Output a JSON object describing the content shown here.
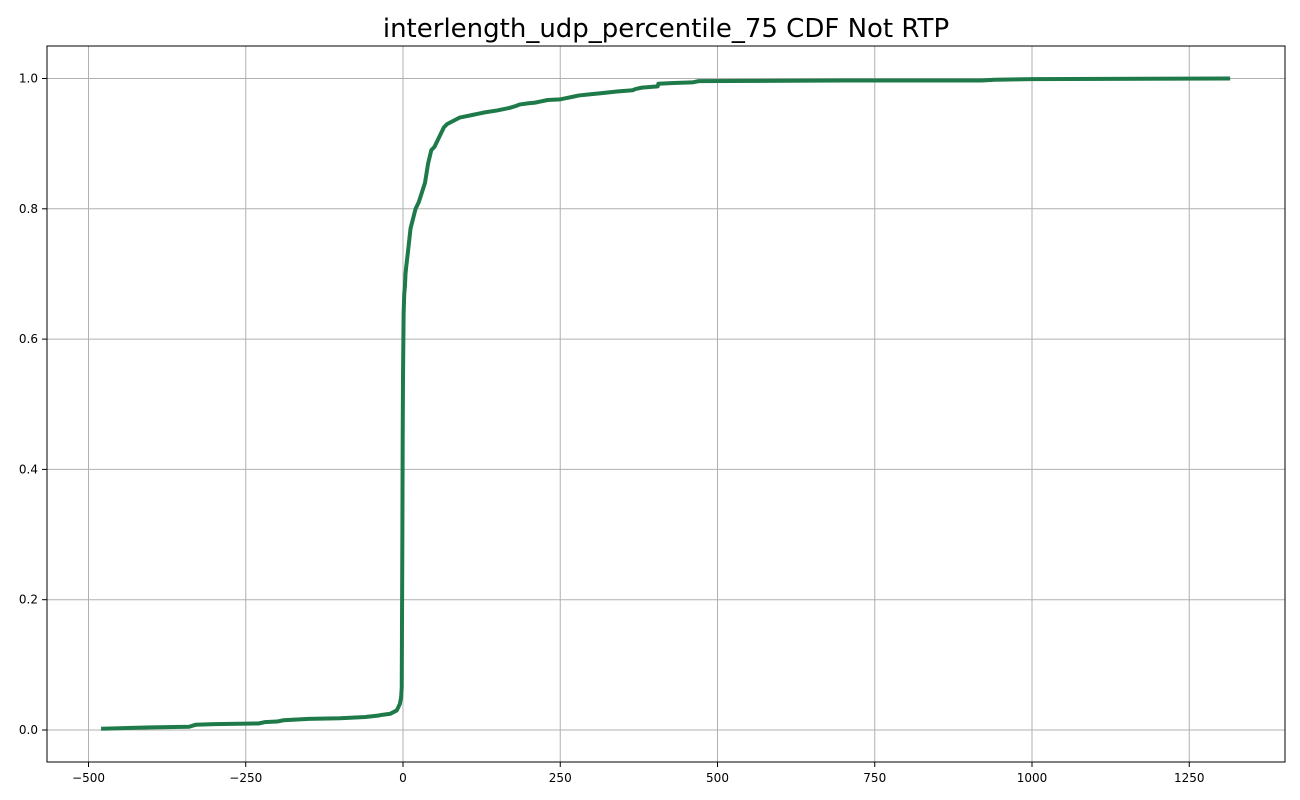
{
  "chart_data": {
    "type": "line",
    "title": "interlength_udp_percentile_75 CDF Not RTP",
    "xlabel": "",
    "ylabel": "",
    "xlim": [
      -500,
      1400
    ],
    "ylim": [
      -0.05,
      1.05
    ],
    "grid": true,
    "x_ticks": [
      -500,
      -250,
      0,
      250,
      500,
      750,
      1000,
      1250
    ],
    "x_tick_labels": [
      "−500",
      "−250",
      "0",
      "250",
      "500",
      "750",
      "1000",
      "1250"
    ],
    "y_ticks": [
      0.0,
      0.2,
      0.4,
      0.6,
      0.8,
      1.0
    ],
    "y_tick_labels": [
      "0.0",
      "0.2",
      "0.4",
      "0.6",
      "0.8",
      "1.0"
    ],
    "series": [
      {
        "color": "#1f7a4a",
        "x": [
          -480,
          -400,
          -340,
          -330,
          -300,
          -230,
          -220,
          -200,
          -190,
          -150,
          -100,
          -80,
          -60,
          -40,
          -35,
          -20,
          -10,
          -5,
          -3,
          -2,
          -1,
          -0.5,
          0,
          0.5,
          1,
          2,
          3,
          4,
          5,
          8,
          12,
          16,
          20,
          25,
          30,
          35,
          40,
          45,
          50,
          55,
          60,
          65,
          70,
          80,
          90,
          100,
          110,
          120,
          130,
          150,
          170,
          180,
          185,
          200,
          210,
          220,
          230,
          250,
          260,
          270,
          280,
          300,
          320,
          340,
          365,
          370,
          380,
          405,
          406,
          430,
          460,
          470,
          700,
          920,
          940,
          1000,
          1315
        ],
        "y": [
          0.002,
          0.004,
          0.005,
          0.008,
          0.009,
          0.01,
          0.012,
          0.013,
          0.015,
          0.017,
          0.018,
          0.019,
          0.02,
          0.022,
          0.023,
          0.025,
          0.03,
          0.04,
          0.05,
          0.065,
          0.3,
          0.45,
          0.54,
          0.59,
          0.64,
          0.67,
          0.68,
          0.7,
          0.71,
          0.735,
          0.77,
          0.785,
          0.8,
          0.81,
          0.825,
          0.84,
          0.87,
          0.89,
          0.895,
          0.905,
          0.915,
          0.925,
          0.93,
          0.935,
          0.94,
          0.942,
          0.944,
          0.946,
          0.948,
          0.951,
          0.955,
          0.958,
          0.96,
          0.962,
          0.963,
          0.965,
          0.967,
          0.968,
          0.97,
          0.972,
          0.974,
          0.976,
          0.978,
          0.98,
          0.982,
          0.984,
          0.986,
          0.988,
          0.992,
          0.993,
          0.994,
          0.996,
          0.997,
          0.997,
          0.998,
          0.999,
          1.0
        ]
      }
    ]
  }
}
